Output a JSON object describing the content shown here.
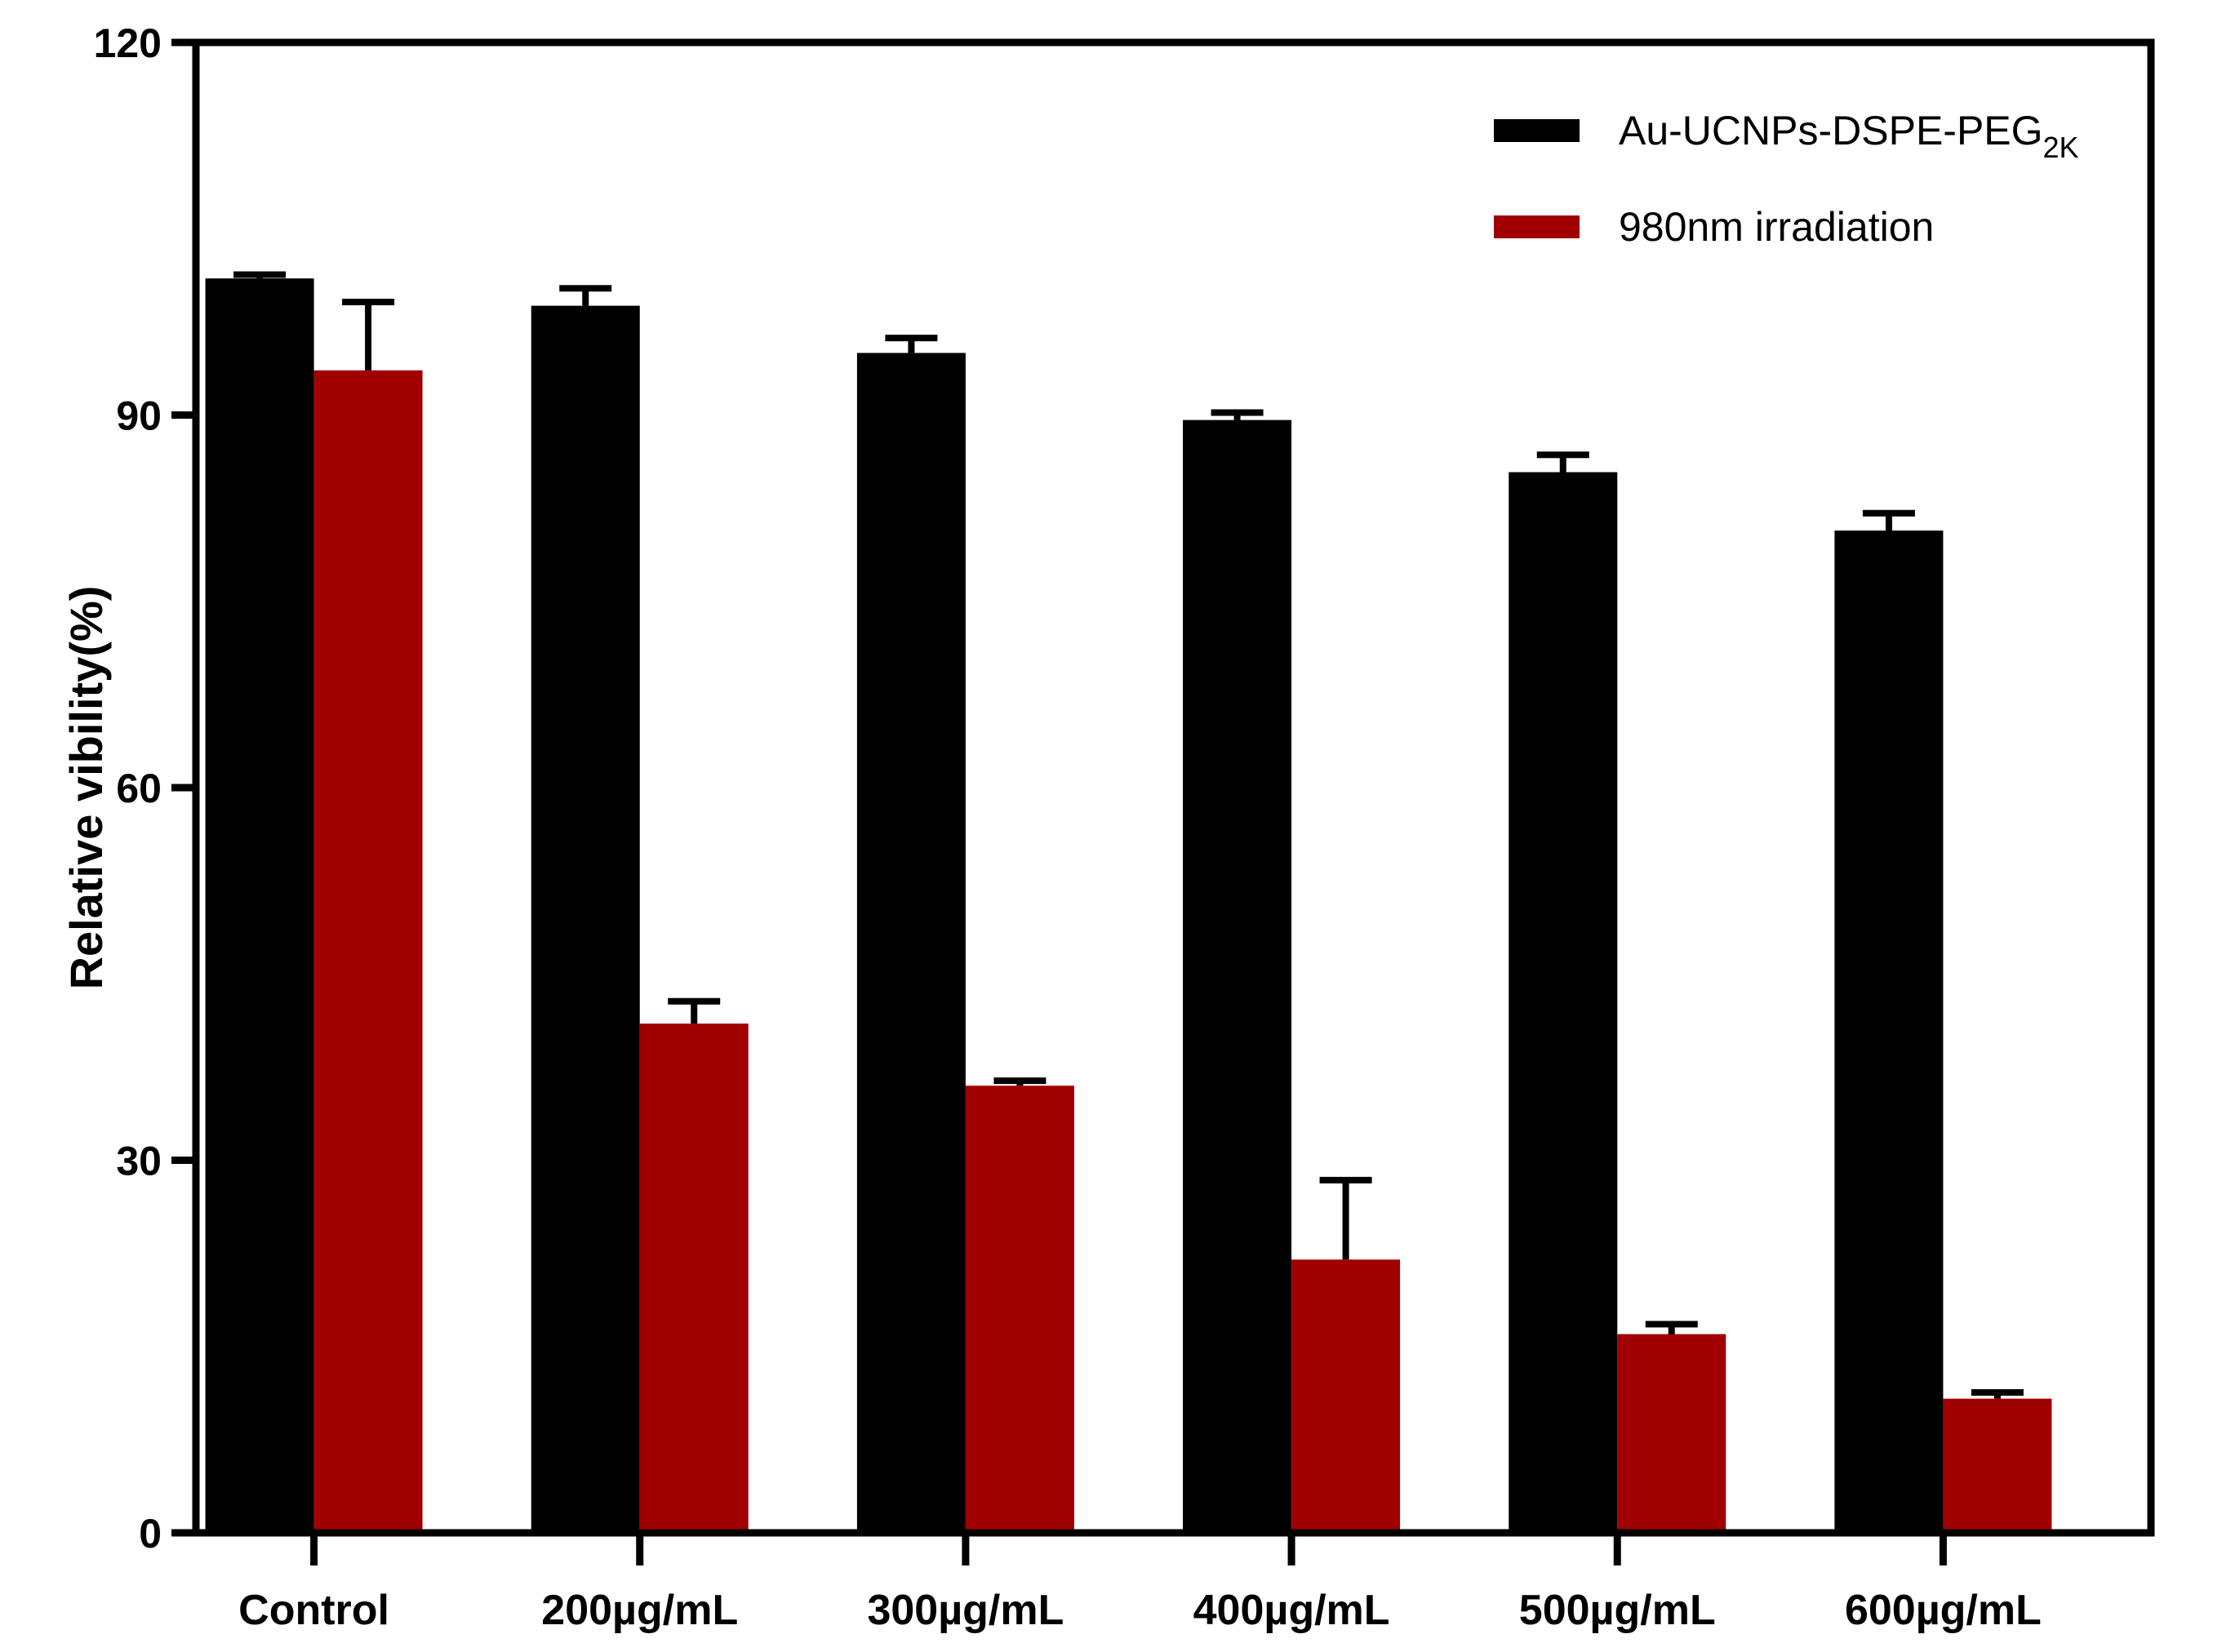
{
  "chart_data": {
    "type": "bar",
    "title": "",
    "xlabel": "",
    "ylabel": "Relative vibility(%)",
    "ylim": [
      0,
      120
    ],
    "yticks": [
      "0",
      "30",
      "60",
      "90",
      "120"
    ],
    "categories": [
      "Control",
      "200µg/mL",
      "300µg/mL",
      "400µg/mL",
      "500µg/mL",
      "600µg/mL"
    ],
    "legend_position": "top-right",
    "series": [
      {
        "name": "Au-UCNPs-DSPE-PEG",
        "name_subscript": "2K",
        "color": "#000000",
        "values": [
          101,
          98.8,
          95,
          89.6,
          85.4,
          80.7
        ],
        "errors": [
          0.3,
          1.4,
          1.2,
          0.6,
          1.4,
          1.4
        ]
      },
      {
        "name": "980nm irradiation",
        "color": "#a10000",
        "values": [
          93.6,
          41,
          36,
          22,
          16,
          10.8
        ],
        "errors": [
          5.5,
          1.8,
          0.4,
          6.4,
          0.8,
          0.5
        ]
      }
    ],
    "grid": false
  }
}
